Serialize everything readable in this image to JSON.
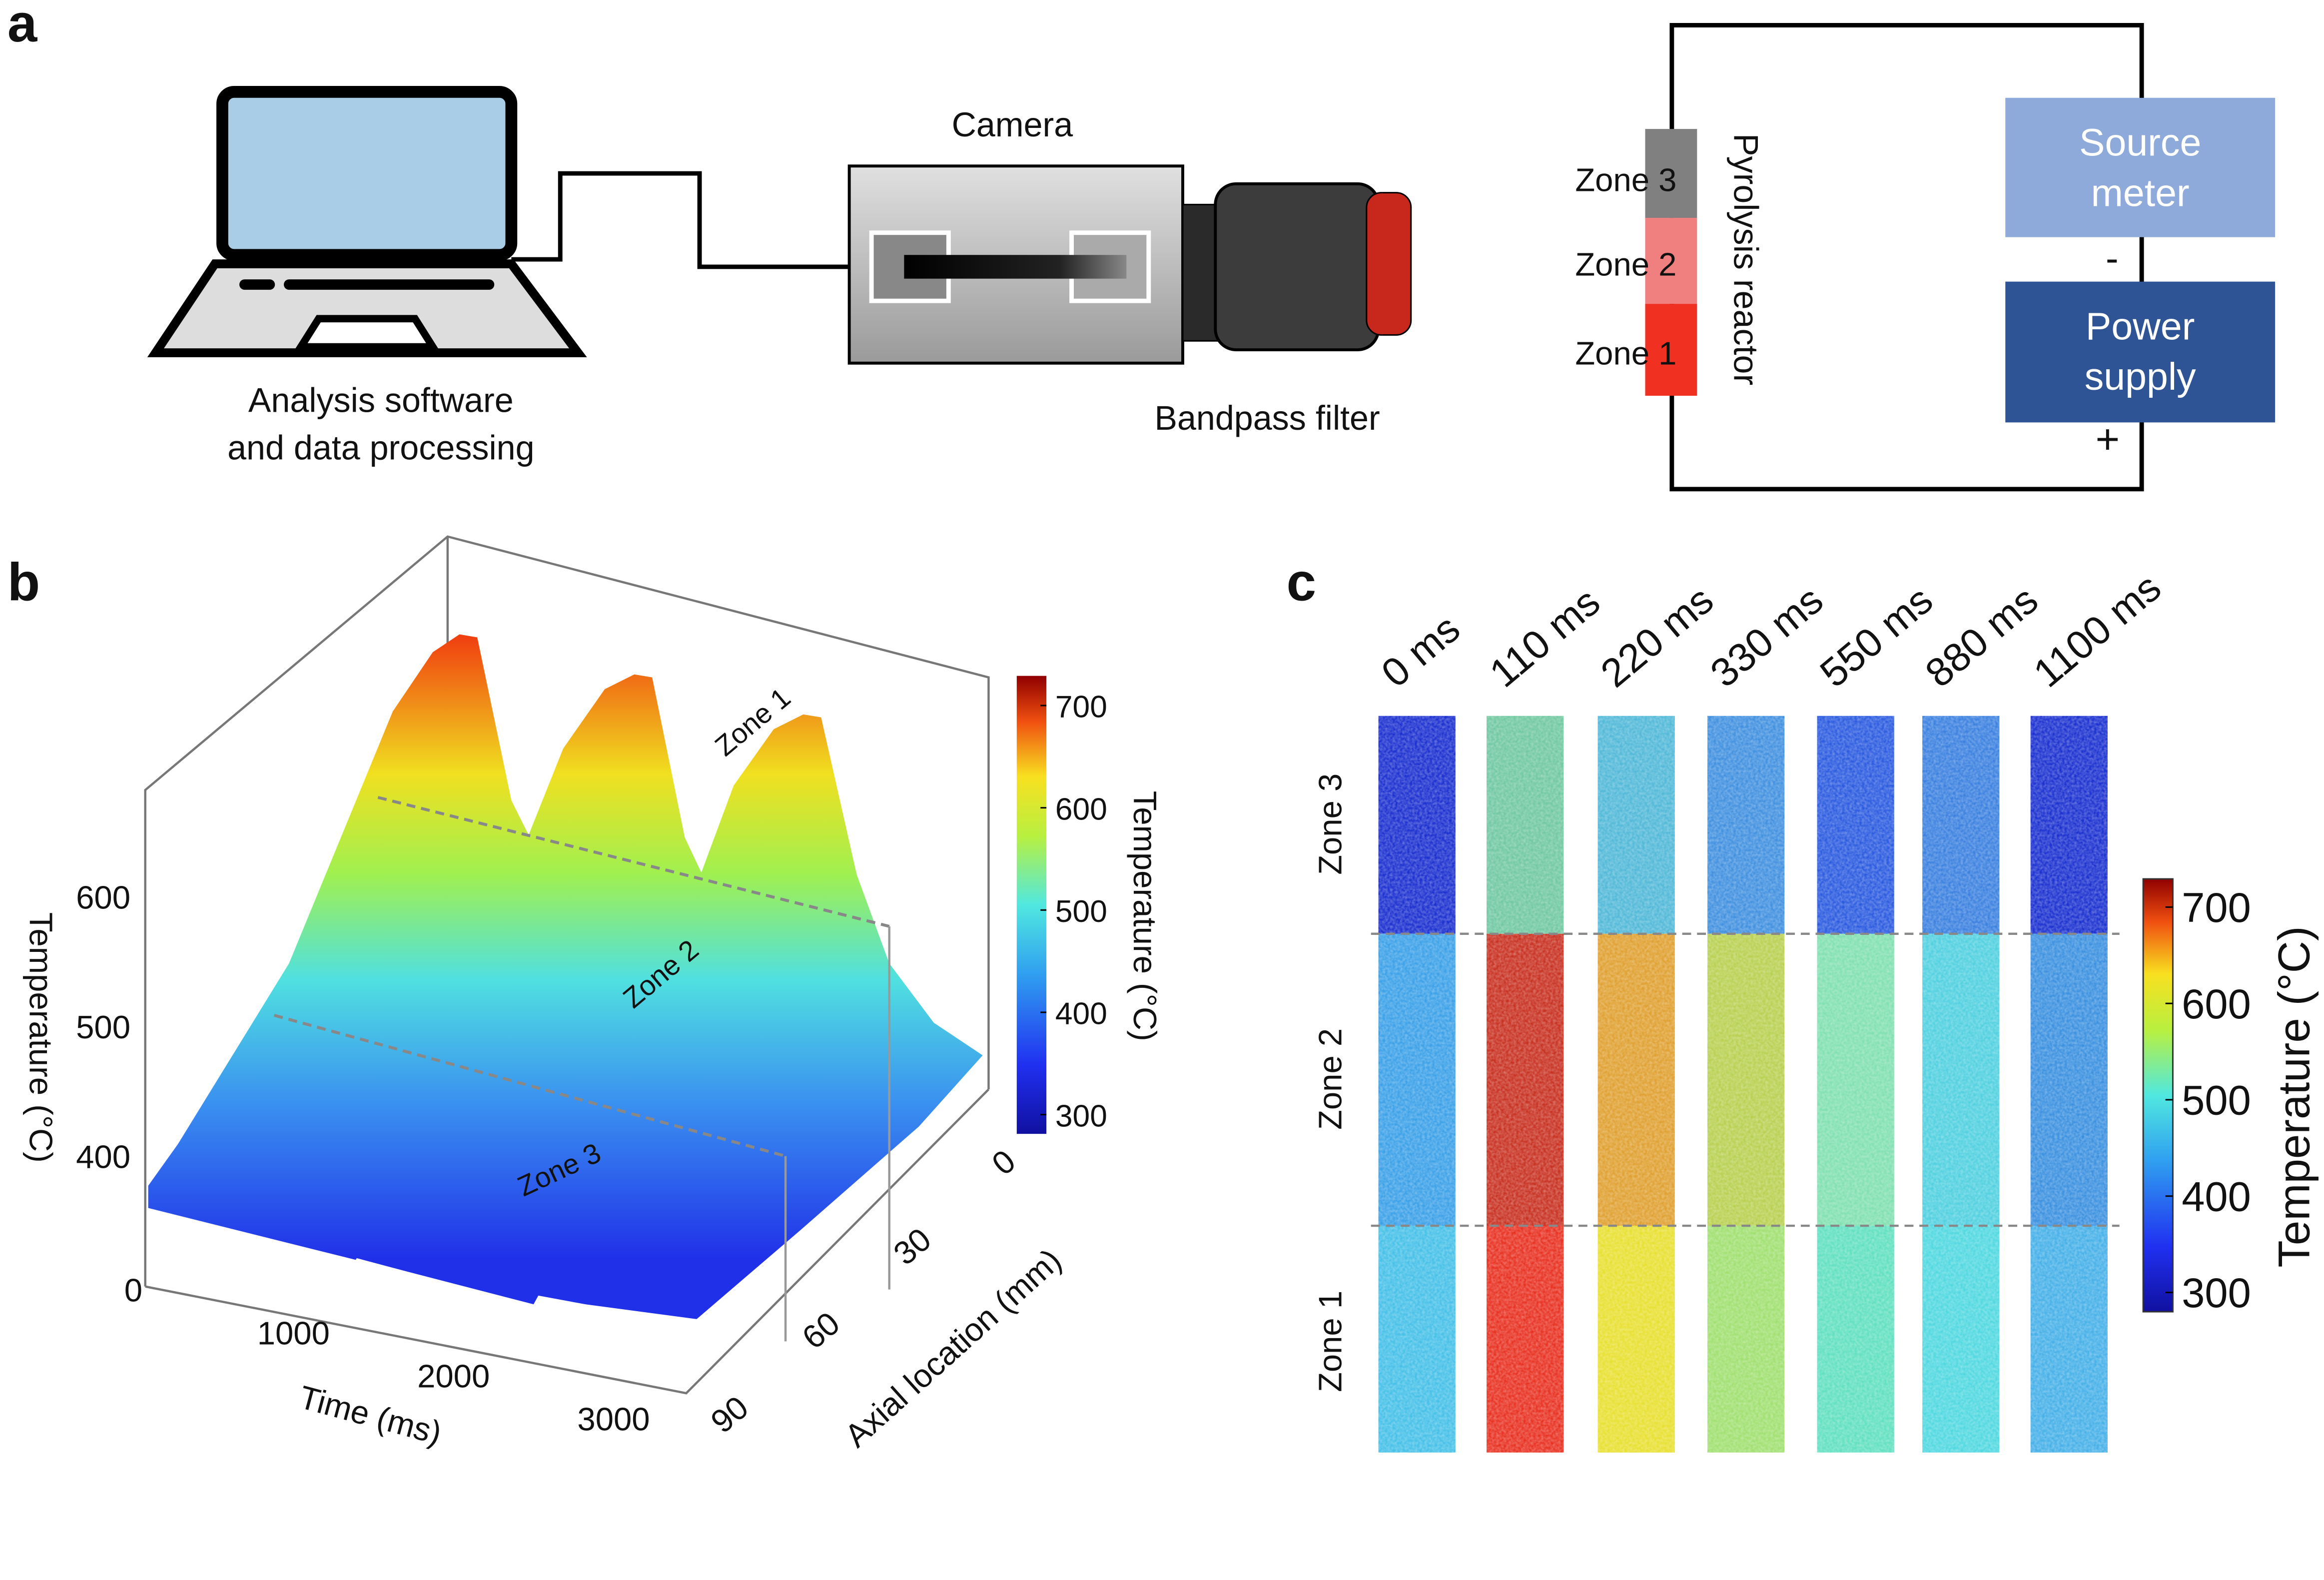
{
  "panel_a": {
    "label": "a",
    "laptop_caption": [
      "Analysis software",
      "and data processing"
    ],
    "camera_label": "Camera",
    "filter_label": "Bandpass filter",
    "reactor_label": "Pyrolysis reactor",
    "zones": [
      "Zone 3",
      "Zone 2",
      "Zone 1"
    ],
    "source_meter": [
      "Source",
      "meter"
    ],
    "power_supply": [
      "Power",
      "supply"
    ],
    "minus": "-",
    "plus": "+"
  },
  "panel_b": {
    "label": "b",
    "z_axis_label": "Temperature (°C)",
    "z_ticks": [
      400,
      500,
      600
    ],
    "time_label": "Time (ms)",
    "time_ticks": [
      0,
      1000,
      2000,
      3000
    ],
    "axial_label": "Axial location (mm)",
    "axial_ticks": [
      0,
      30,
      60,
      90
    ],
    "zone_labels": [
      "Zone 1",
      "Zone 2",
      "Zone 3"
    ],
    "colorbar_ticks": [
      300,
      400,
      500,
      600,
      700
    ],
    "colorbar_label": "Temperature (°C)"
  },
  "panel_c": {
    "label": "c",
    "times": [
      "0 ms",
      "110 ms",
      "220 ms",
      "330 ms",
      "550 ms",
      "880 ms",
      "1100 ms"
    ],
    "zones": [
      "Zone 3",
      "Zone 2",
      "Zone 1"
    ],
    "colorbar_ticks": [
      300,
      400,
      500,
      600,
      700
    ],
    "colorbar_label": "Temperature (°C)"
  }
}
